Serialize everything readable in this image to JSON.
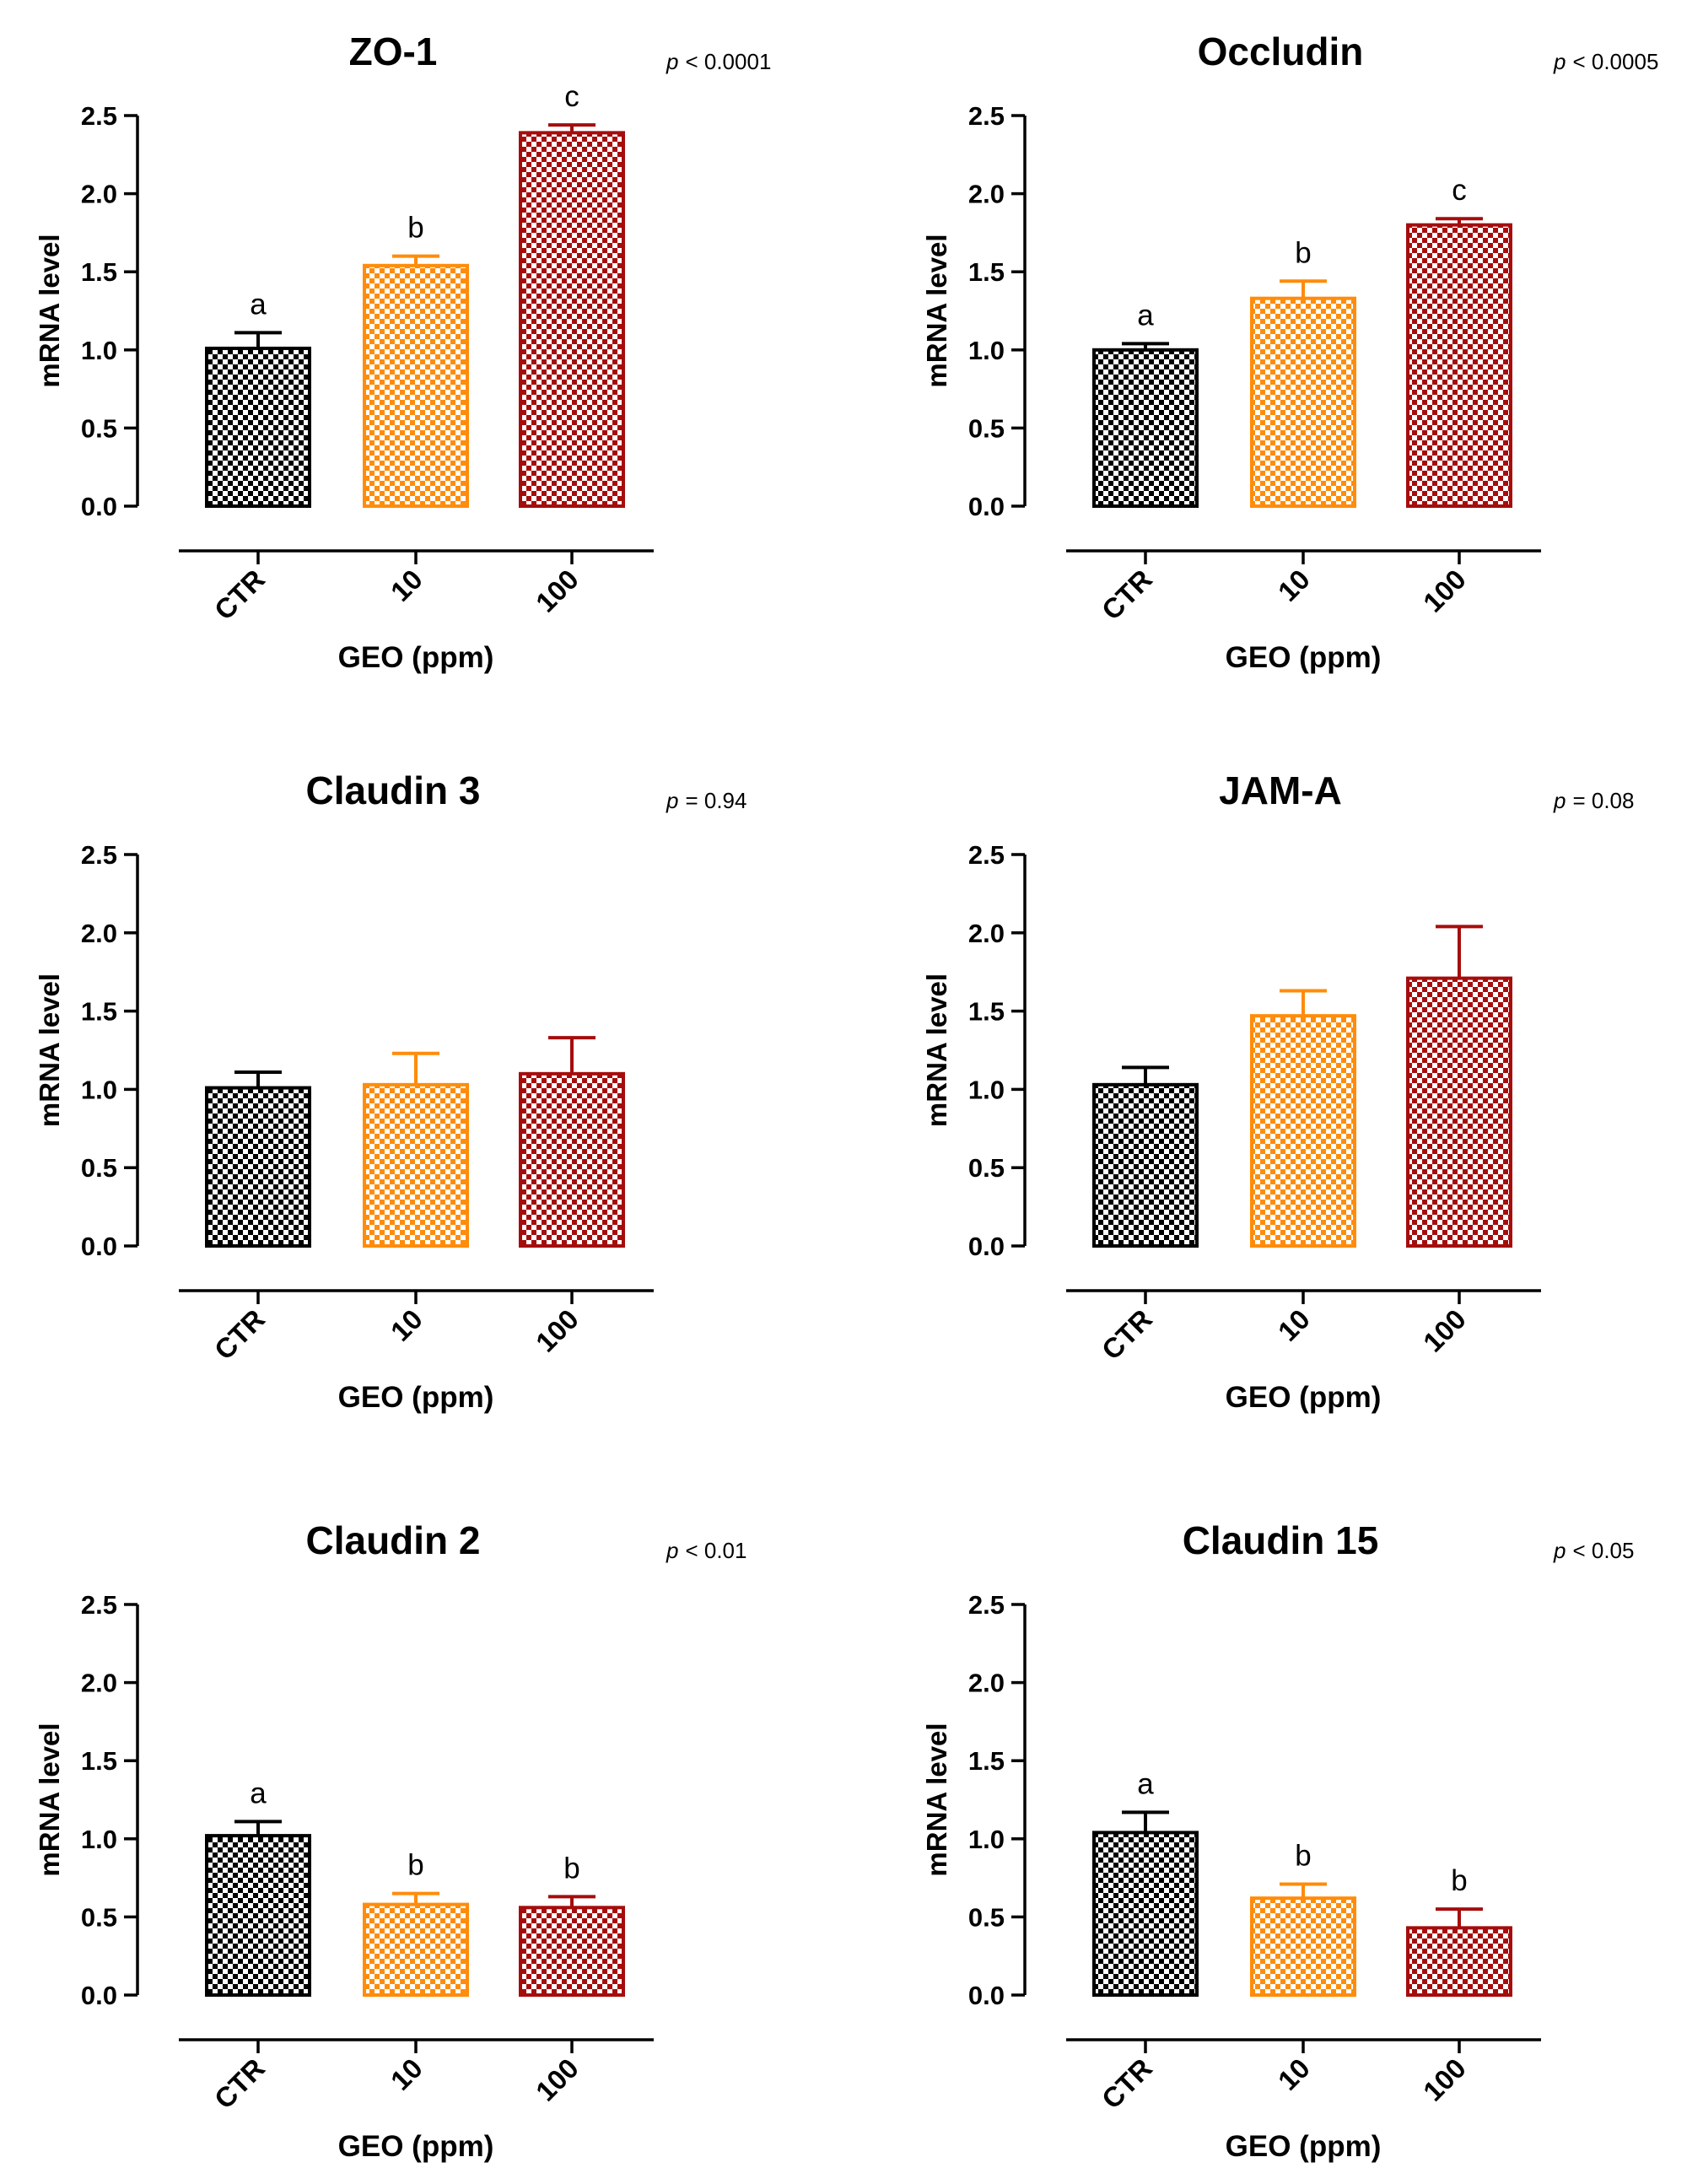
{
  "figure": {
    "panels_per_row": 2,
    "colors": {
      "CTR": "#000000",
      "10": "#ff8c0a",
      "100": "#a50d0d"
    }
  },
  "chart_data": [
    {
      "type": "bar",
      "title": "ZO-1",
      "p_label": "p",
      "p_value": "< 0.0001",
      "categories": [
        "CTR",
        "10",
        "100"
      ],
      "values": [
        1.01,
        1.54,
        2.39
      ],
      "errors": [
        0.1,
        0.06,
        0.05
      ],
      "letters": [
        "a",
        "b",
        "c"
      ],
      "xlabel": "GEO (ppm)",
      "ylabel": "mRNA level",
      "ylim": [
        0,
        2.5
      ],
      "yticks": [
        "0.0",
        "0.5",
        "1.0",
        "1.5",
        "2.0",
        "2.5"
      ]
    },
    {
      "type": "bar",
      "title": "Occludin",
      "p_label": "p",
      "p_value": "< 0.0005",
      "categories": [
        "CTR",
        "10",
        "100"
      ],
      "values": [
        1.0,
        1.33,
        1.8
      ],
      "errors": [
        0.04,
        0.11,
        0.04
      ],
      "letters": [
        "a",
        "b",
        "c"
      ],
      "xlabel": "GEO (ppm)",
      "ylabel": "mRNA level",
      "ylim": [
        0,
        2.5
      ],
      "yticks": [
        "0.0",
        "0.5",
        "1.0",
        "1.5",
        "2.0",
        "2.5"
      ]
    },
    {
      "type": "bar",
      "title": "Claudin 3",
      "p_label": "p",
      "p_value": "= 0.94",
      "categories": [
        "CTR",
        "10",
        "100"
      ],
      "values": [
        1.01,
        1.03,
        1.1
      ],
      "errors": [
        0.1,
        0.2,
        0.23
      ],
      "letters": [
        "",
        "",
        ""
      ],
      "xlabel": "GEO (ppm)",
      "ylabel": "mRNA level",
      "ylim": [
        0,
        2.5
      ],
      "yticks": [
        "0.0",
        "0.5",
        "1.0",
        "1.5",
        "2.0",
        "2.5"
      ]
    },
    {
      "type": "bar",
      "title": "JAM-A",
      "p_label": "p",
      "p_value": "= 0.08",
      "categories": [
        "CTR",
        "10",
        "100"
      ],
      "values": [
        1.03,
        1.47,
        1.71
      ],
      "errors": [
        0.11,
        0.16,
        0.33
      ],
      "letters": [
        "",
        "",
        ""
      ],
      "xlabel": "GEO (ppm)",
      "ylabel": "mRNA level",
      "ylim": [
        0,
        2.5
      ],
      "yticks": [
        "0.0",
        "0.5",
        "1.0",
        "1.5",
        "2.0",
        "2.5"
      ]
    },
    {
      "type": "bar",
      "title": "Claudin 2",
      "p_label": "p",
      "p_value": "< 0.01",
      "categories": [
        "CTR",
        "10",
        "100"
      ],
      "values": [
        1.02,
        0.58,
        0.56
      ],
      "errors": [
        0.09,
        0.07,
        0.07
      ],
      "letters": [
        "a",
        "b",
        "b"
      ],
      "xlabel": "GEO (ppm)",
      "ylabel": "mRNA level",
      "ylim": [
        0,
        2.5
      ],
      "yticks": [
        "0.0",
        "0.5",
        "1.0",
        "1.5",
        "2.0",
        "2.5"
      ]
    },
    {
      "type": "bar",
      "title": "Claudin 15",
      "p_label": "p",
      "p_value": "< 0.05",
      "categories": [
        "CTR",
        "10",
        "100"
      ],
      "values": [
        1.04,
        0.62,
        0.43
      ],
      "errors": [
        0.13,
        0.09,
        0.12
      ],
      "letters": [
        "a",
        "b",
        "b"
      ],
      "xlabel": "GEO (ppm)",
      "ylabel": "mRNA level",
      "ylim": [
        0,
        2.5
      ],
      "yticks": [
        "0.0",
        "0.5",
        "1.0",
        "1.5",
        "2.0",
        "2.5"
      ]
    }
  ]
}
